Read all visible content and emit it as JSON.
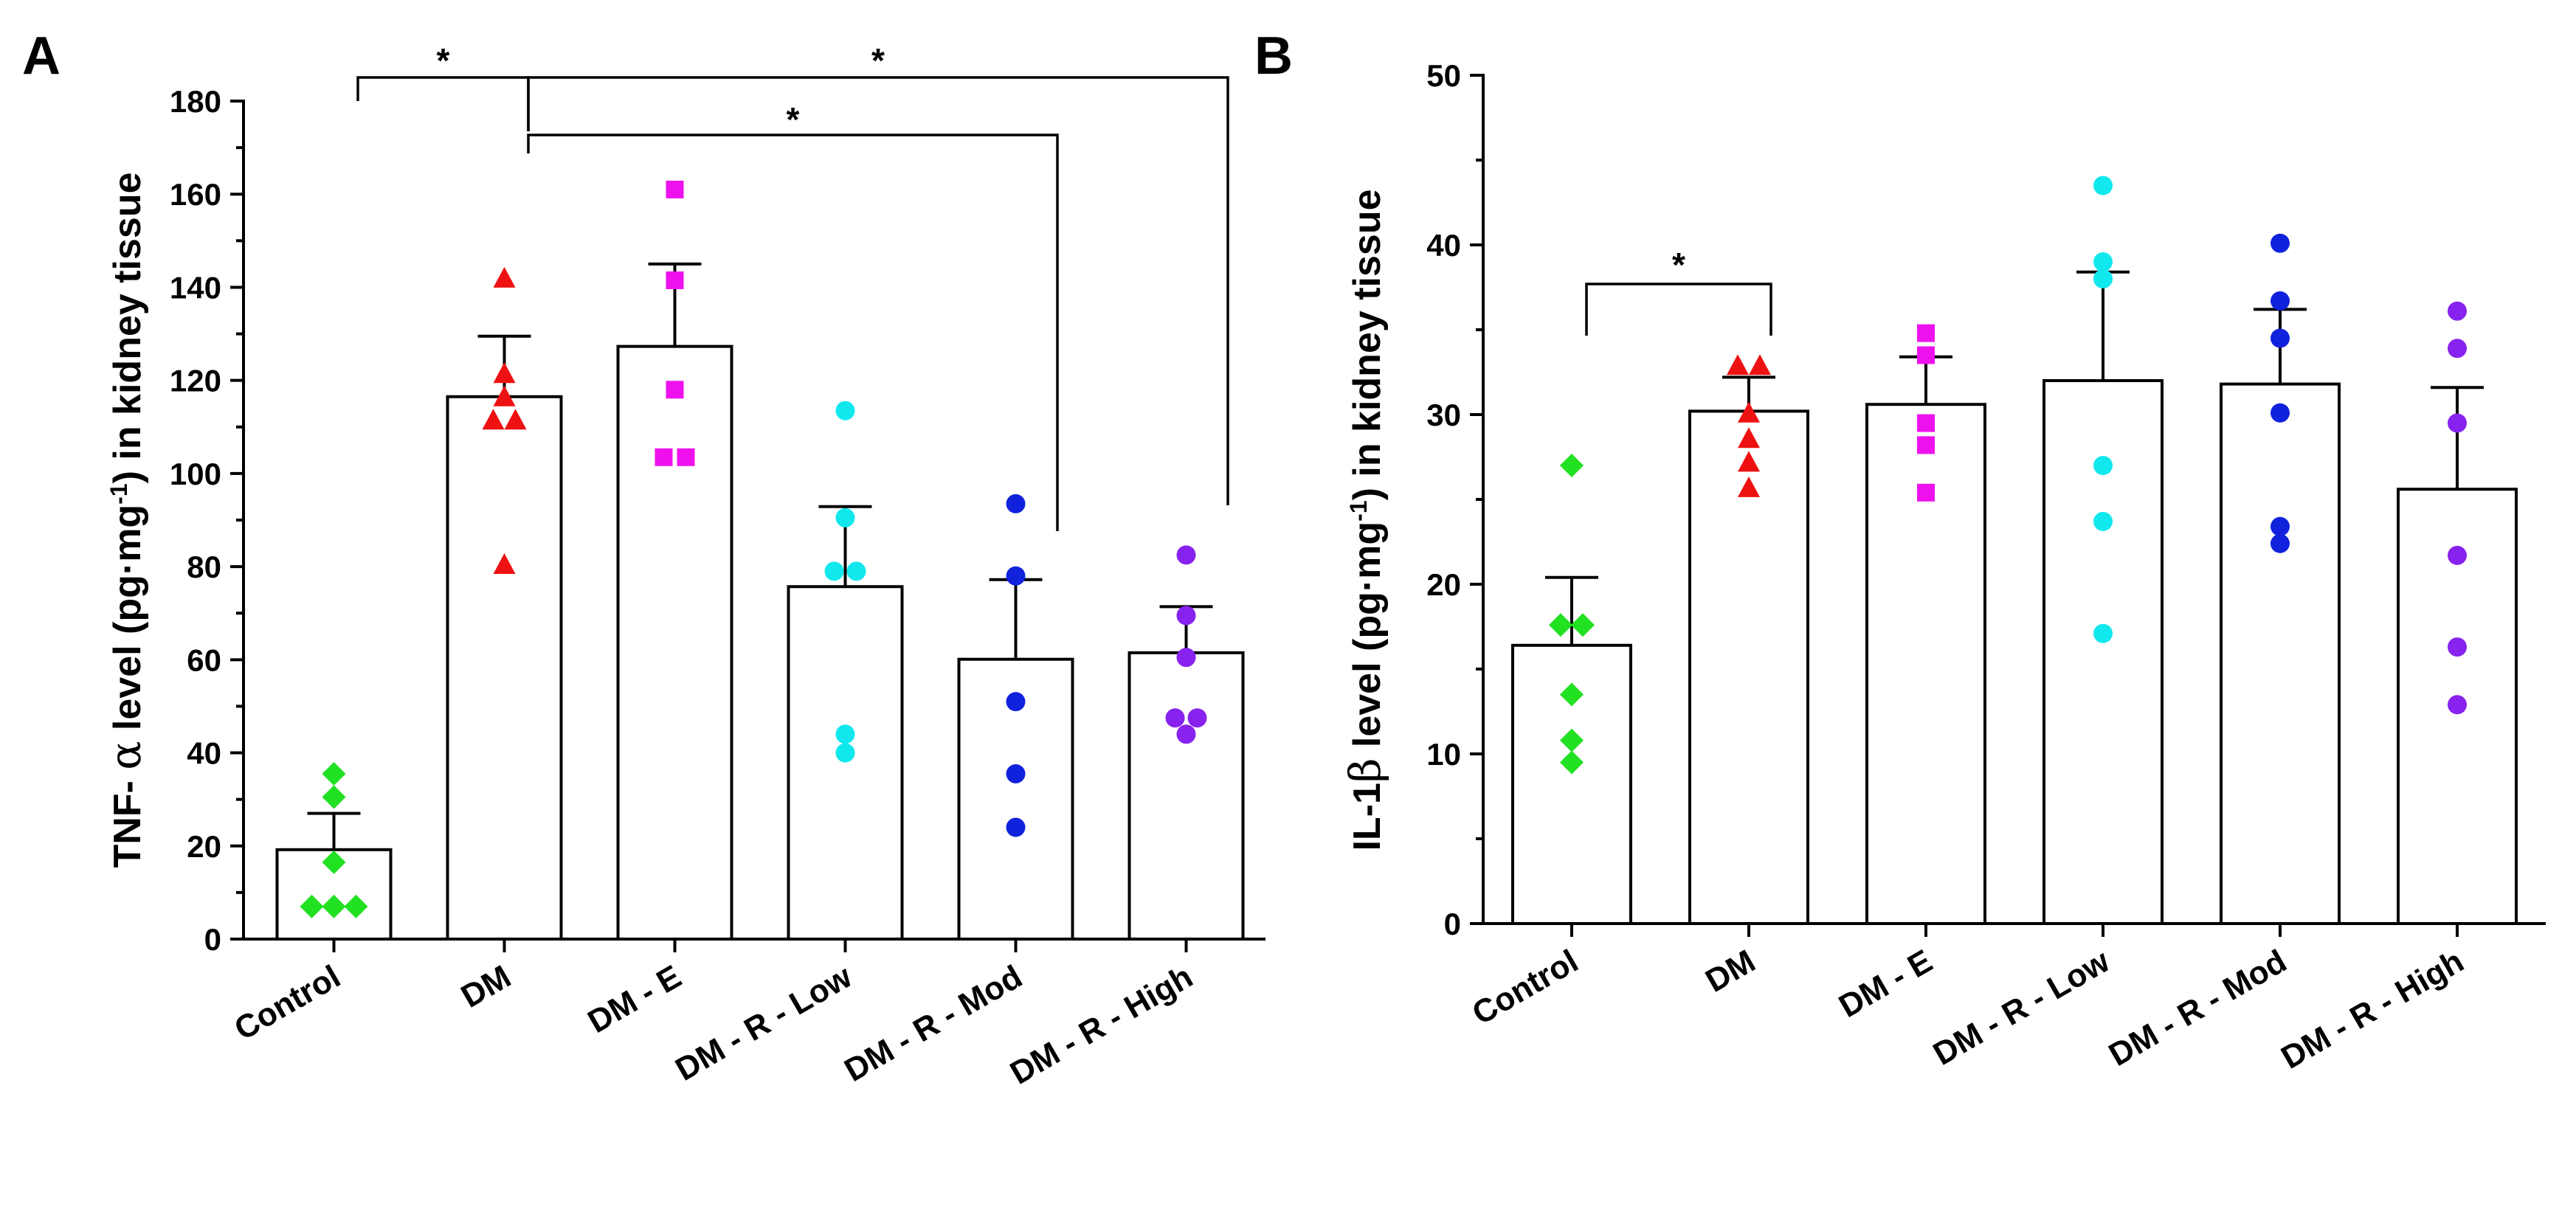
{
  "chart_data": [
    {
      "type": "bar",
      "panel": "A",
      "title": "",
      "xlabel": "",
      "ylabel": "TNF- α level (pg·mg⁻¹) in kidney tissue",
      "ylabel_parts": {
        "pre": "TNF- ",
        "greek": "α",
        "mid": " level (pg·mg",
        "sup": "-1",
        "post": ") in kidney tissue"
      },
      "ylim": [
        0,
        180
      ],
      "yticks": [
        0,
        20,
        40,
        60,
        80,
        100,
        120,
        140,
        160,
        180
      ],
      "yticks_minor_step": 10,
      "categories": [
        "Control",
        "DM",
        "DM - E",
        "DM - R - Low",
        "DM - R - Mod",
        "DM - R - High"
      ],
      "means": [
        19.2,
        116.5,
        127.3,
        75.7,
        60.1,
        61.5
      ],
      "errors": [
        7.8,
        13.0,
        17.7,
        17.2,
        17.1,
        9.9
      ],
      "points": [
        [
          35.5,
          30.5,
          16.5,
          7.0,
          7.0,
          7.0
        ],
        [
          142.0,
          121.5,
          116.5,
          111.5,
          111.5,
          80.5
        ],
        [
          161.0,
          141.5,
          118.0,
          103.5,
          103.5
        ],
        [
          113.5,
          90.5,
          79.0,
          79.0,
          44.0,
          40.0
        ],
        [
          93.5,
          78.0,
          51.0,
          35.5,
          24.0
        ],
        [
          82.5,
          69.5,
          60.5,
          47.5,
          47.5,
          44.0
        ]
      ],
      "significance": [
        {
          "from": "Control",
          "to": "DM",
          "label": "*"
        },
        {
          "from": "DM",
          "to": "DM - R - High",
          "label": "*"
        },
        {
          "from": "DM",
          "to": "DM - R - Mod",
          "label": "*"
        }
      ]
    },
    {
      "type": "bar",
      "panel": "B",
      "title": "",
      "xlabel": "",
      "ylabel": "IL-1β level (pg·mg⁻¹) in kidney tissue",
      "ylabel_parts": {
        "pre": "IL-1",
        "greek": "β",
        "mid": " level (pg·mg",
        "sup": "-1",
        "post": ") in kidney tissue"
      },
      "ylim": [
        0,
        50
      ],
      "yticks": [
        0,
        10,
        20,
        30,
        40,
        50
      ],
      "yticks_minor_step": 5,
      "categories": [
        "Control",
        "DM",
        "DM - E",
        "DM - R - Low",
        "DM - R - Mod",
        "DM - R - High"
      ],
      "means": [
        16.4,
        30.2,
        30.6,
        32.0,
        31.8,
        25.6
      ],
      "errors": [
        4.0,
        2.0,
        2.8,
        6.4,
        4.4,
        6.0
      ],
      "points": [
        [
          27.0,
          17.6,
          17.6,
          13.5,
          10.8,
          9.5
        ],
        [
          32.9,
          32.9,
          30.1,
          28.6,
          27.2,
          25.7
        ],
        [
          34.8,
          33.5,
          29.5,
          28.2,
          25.4
        ],
        [
          43.5,
          39.0,
          38.0,
          27.0,
          23.7,
          17.1
        ],
        [
          40.1,
          36.7,
          34.5,
          30.1,
          23.4,
          22.4
        ],
        [
          36.1,
          33.9,
          29.5,
          21.7,
          16.3,
          12.9
        ]
      ],
      "significance": [
        {
          "from": "Control",
          "to": "DM",
          "label": "*"
        }
      ]
    }
  ],
  "group_colors": [
    "#22e022",
    "#ee1111",
    "#ee11ee",
    "#11e8ee",
    "#1122dd",
    "#8822ee"
  ],
  "group_markers": [
    "diamond",
    "triangle",
    "square",
    "circle",
    "circle",
    "circle"
  ]
}
